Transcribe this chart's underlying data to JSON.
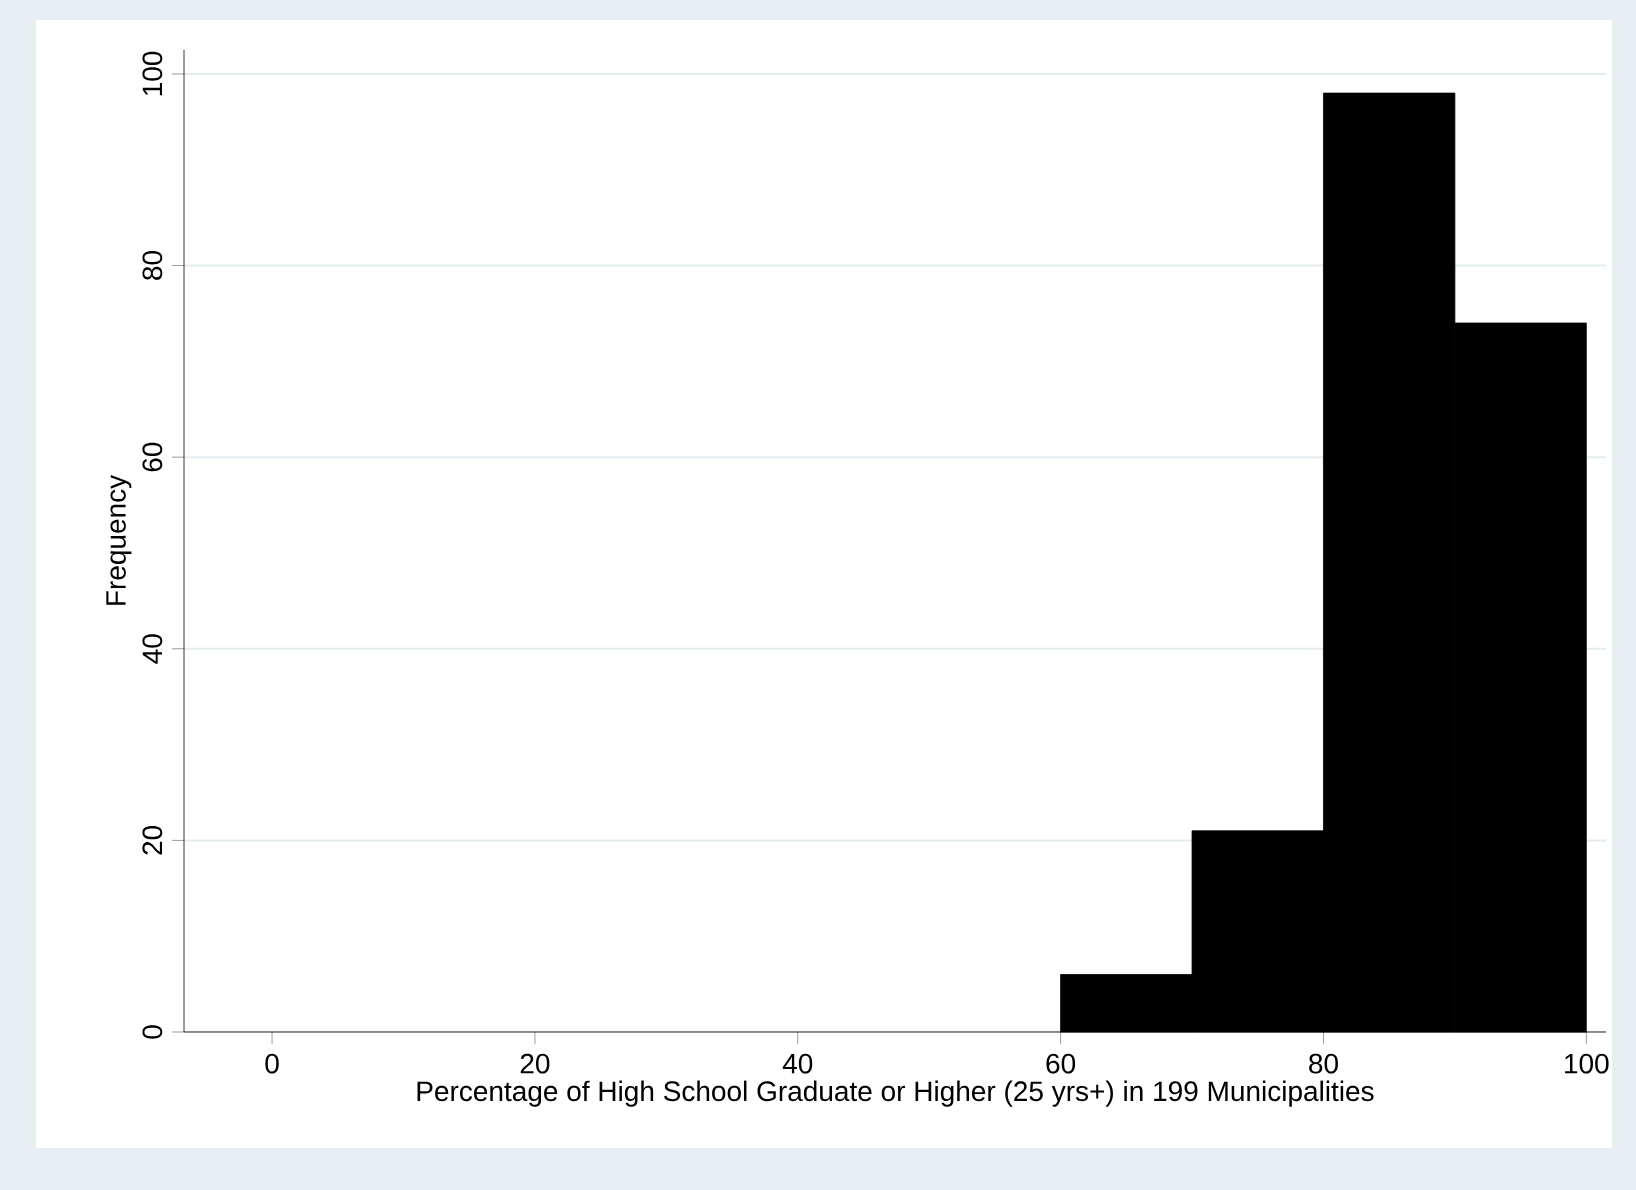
{
  "chart_data": {
    "type": "histogram",
    "xlabel": "Percentage of High School Graduate or Higher (25 yrs+) in 199 Municipalities",
    "ylabel": "Frequency",
    "bins": [
      60,
      70,
      80,
      90,
      100
    ],
    "values": [
      6,
      21,
      98,
      74
    ],
    "color": "#000000",
    "xlim": [
      -6.7,
      101.5
    ],
    "ylim": [
      0,
      102.5
    ],
    "xticks": [
      0,
      20,
      40,
      60,
      80,
      100
    ],
    "yticks": [
      0,
      20,
      40,
      60,
      80,
      100
    ],
    "grid": "y"
  }
}
